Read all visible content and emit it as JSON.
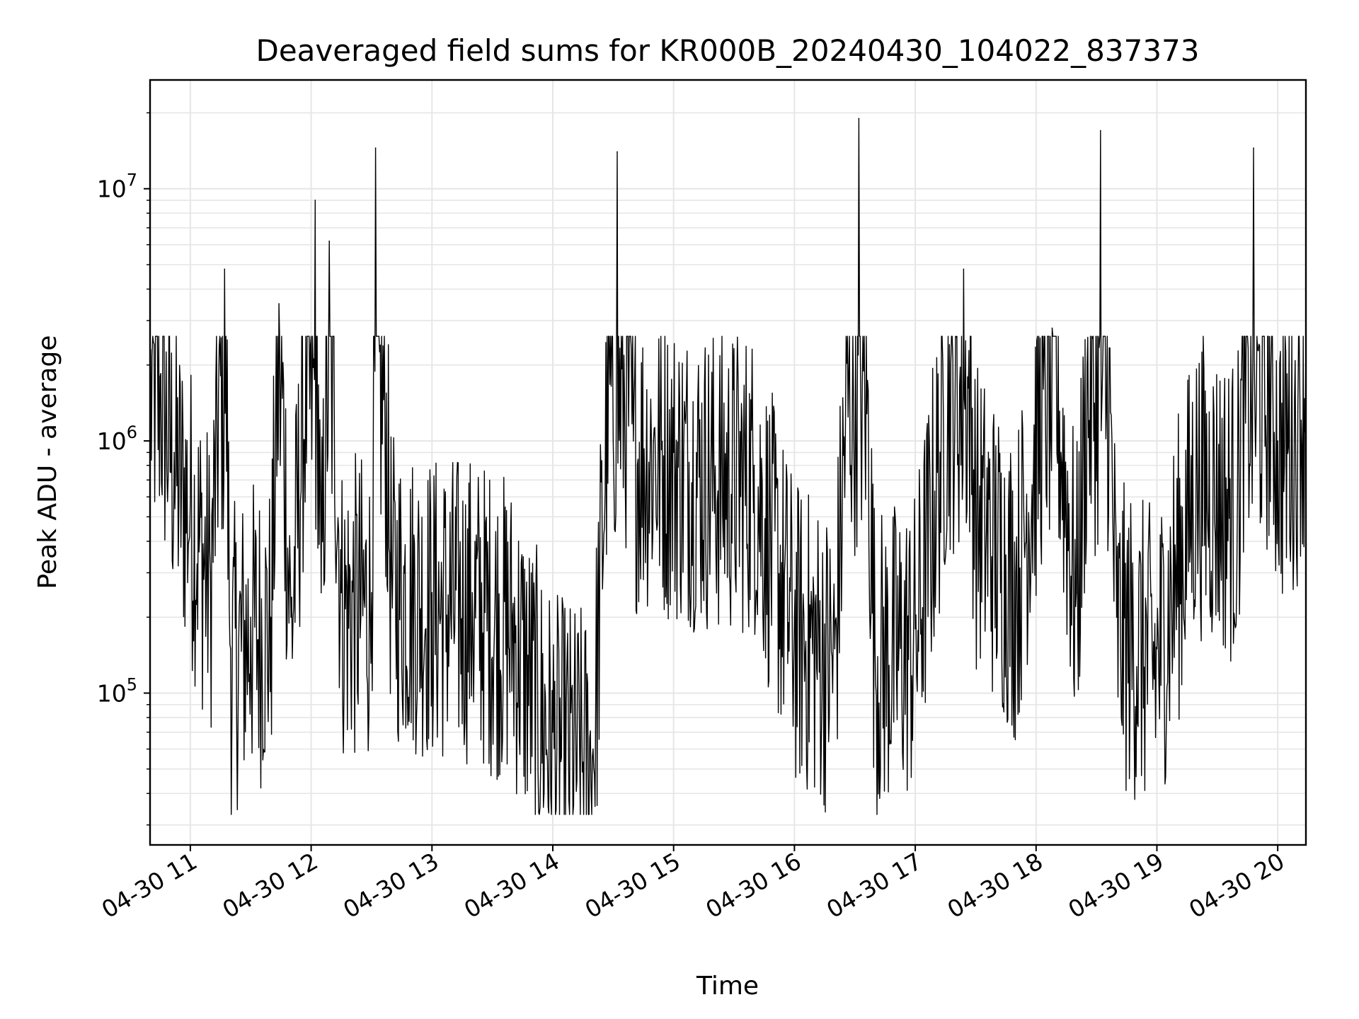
{
  "chart_data": {
    "type": "line",
    "title": "Deaveraged field sums for KR000B_20240430_104022_837373",
    "xlabel": "Time",
    "ylabel": "Peak ADU - average",
    "yscale": "log",
    "ylim": [
      25000,
      27000000
    ],
    "xlim": [
      "2024-04-30 10:40",
      "2024-04-30 20:14"
    ],
    "x_tick_labels": [
      "04-30 11",
      "04-30 12",
      "04-30 13",
      "04-30 14",
      "04-30 15",
      "04-30 16",
      "04-30 17",
      "04-30 18",
      "04-30 19",
      "04-30 20"
    ],
    "y_tick_labels": [
      {
        "base": "10",
        "exp": "5",
        "value": 100000
      },
      {
        "base": "10",
        "exp": "6",
        "value": 1000000
      },
      {
        "base": "10",
        "exp": "7",
        "value": 10000000
      }
    ],
    "grid": true,
    "line_color": "#000000",
    "series": [
      {
        "x": [
          "2024-04-30 10:40",
          "2024-04-30 10:45",
          "2024-04-30 10:52",
          "2024-04-30 11:00",
          "2024-04-30 11:10",
          "2024-04-30 11:17",
          "2024-04-30 11:20",
          "2024-04-30 11:30",
          "2024-04-30 11:40",
          "2024-04-30 11:44",
          "2024-04-30 11:50",
          "2024-04-30 12:02",
          "2024-04-30 12:05",
          "2024-04-30 12:09",
          "2024-04-30 12:15",
          "2024-04-30 12:30",
          "2024-04-30 12:32",
          "2024-04-30 12:40",
          "2024-04-30 13:00",
          "2024-04-30 13:20",
          "2024-04-30 13:40",
          "2024-04-30 14:00",
          "2024-04-30 14:20",
          "2024-04-30 14:32",
          "2024-04-30 14:40",
          "2024-04-30 14:50",
          "2024-04-30 15:00",
          "2024-04-30 15:20",
          "2024-04-30 15:40",
          "2024-04-30 16:00",
          "2024-04-30 16:20",
          "2024-04-30 16:32",
          "2024-04-30 16:40",
          "2024-04-30 17:00",
          "2024-04-30 17:24",
          "2024-04-30 17:30",
          "2024-04-30 17:50",
          "2024-04-30 18:08",
          "2024-04-30 18:20",
          "2024-04-30 18:32",
          "2024-04-30 18:40",
          "2024-04-30 19:00",
          "2024-04-30 19:20",
          "2024-04-30 19:40",
          "2024-04-30 19:48",
          "2024-04-30 20:00",
          "2024-04-30 20:10",
          "2024-04-30 20:14"
        ],
        "y": [
          1700000,
          1800000,
          900000,
          600000,
          300000,
          4800000,
          150000,
          200000,
          200000,
          3500000,
          200000,
          9000000,
          250000,
          6200000,
          250000,
          250000,
          14500000,
          300000,
          250000,
          250000,
          200000,
          70000,
          60000,
          14000000,
          1000000,
          1000000,
          900000,
          800000,
          800000,
          200000,
          150000,
          19000000,
          150000,
          180000,
          4800000,
          600000,
          300000,
          2800000,
          250000,
          17000000,
          200000,
          150000,
          800000,
          600000,
          14500000,
          1000000,
          1300000,
          2800000
        ]
      }
    ]
  }
}
